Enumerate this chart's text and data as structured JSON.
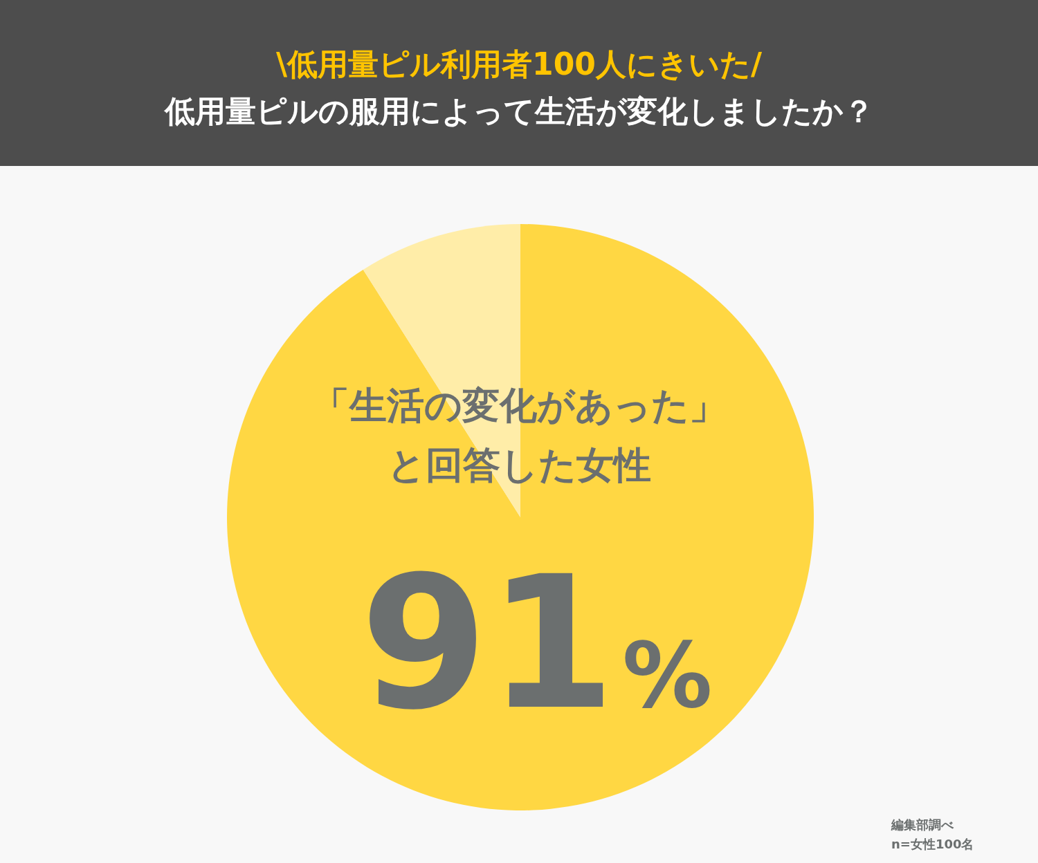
{
  "chart_data": {
    "type": "pie",
    "title": "\\低用量ピル利用者100人にきいた/",
    "subtitle": "低用量ピルの服用によって生活が変化しましたか？",
    "categories": [
      null,
      null
    ],
    "values": [
      91,
      9
    ],
    "colors": [
      "#ffd743",
      "#ffeda8"
    ],
    "value_labels": [
      "91%",
      null
    ],
    "annotations": [
      "「生活の変化があった」",
      "と回答した女性",
      "編集部調べ",
      "n=女性100名"
    ]
  }
}
